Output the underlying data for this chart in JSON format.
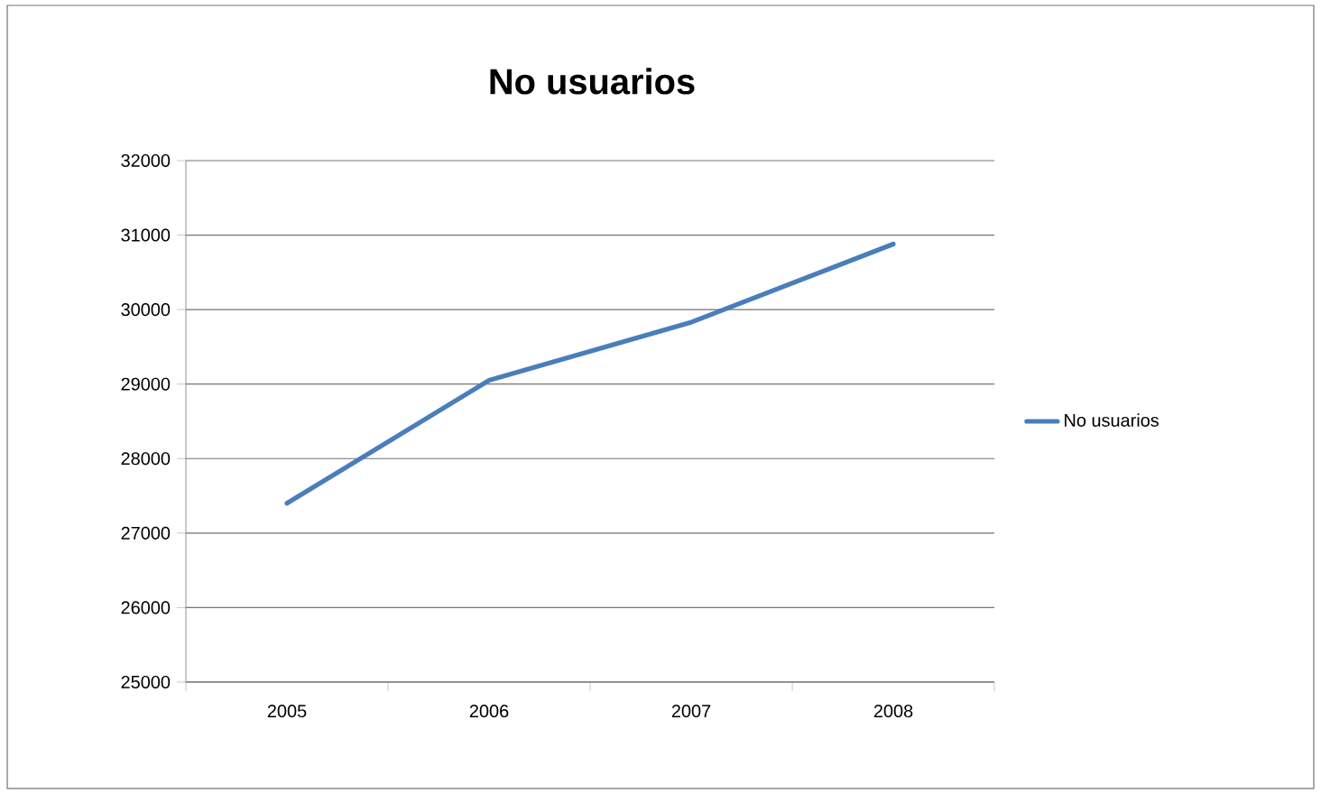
{
  "chart_data": {
    "type": "line",
    "title": "No usuarios",
    "categories": [
      "2005",
      "2006",
      "2007",
      "2008"
    ],
    "series": [
      {
        "name": "No usuarios",
        "color": "#4a7ebb",
        "values": [
          27400,
          29050,
          29830,
          30880
        ]
      }
    ],
    "ylim": [
      25000,
      32000
    ],
    "yticks": [
      25000,
      26000,
      27000,
      28000,
      29000,
      30000,
      31000,
      32000
    ],
    "grid": "y",
    "legend": "right"
  }
}
